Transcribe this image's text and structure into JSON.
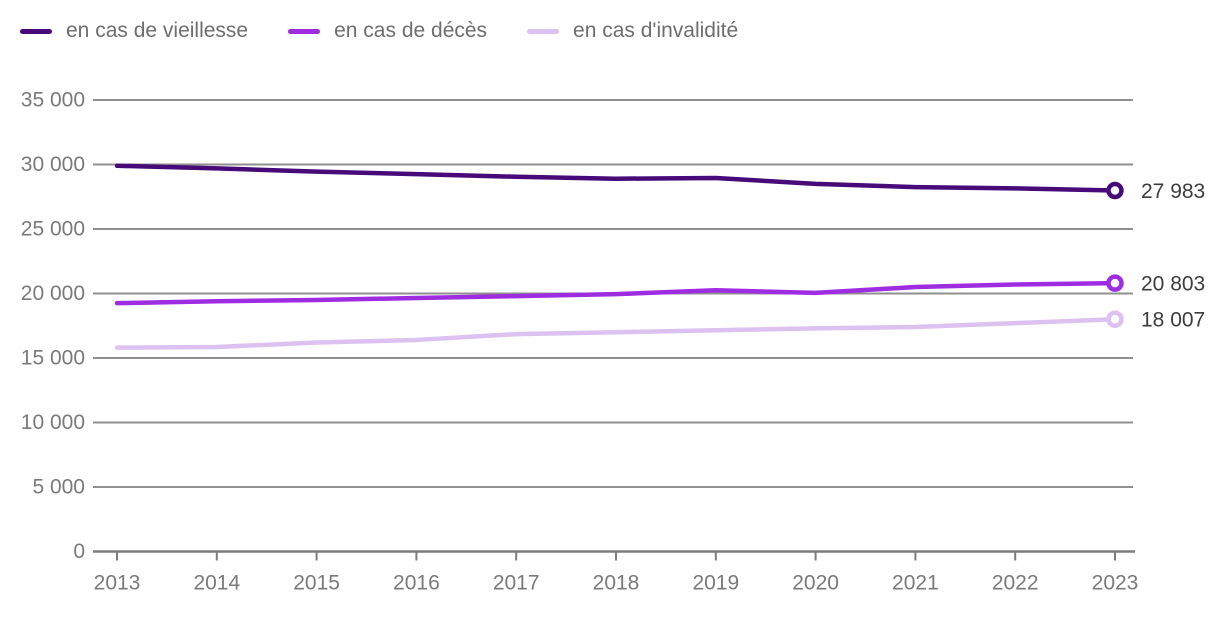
{
  "legend": {
    "items": [
      {
        "label": "en cas de vieillesse"
      },
      {
        "label": "en cas de décès"
      },
      {
        "label": "en cas d'invalidité"
      }
    ]
  },
  "chart_data": {
    "type": "line",
    "title": "",
    "xlabel": "",
    "ylabel": "",
    "x": [
      2013,
      2014,
      2015,
      2016,
      2017,
      2018,
      2019,
      2020,
      2021,
      2022,
      2023
    ],
    "x_tick_labels": [
      "2013",
      "2014",
      "2015",
      "2016",
      "2017",
      "2018",
      "2019",
      "2020",
      "2021",
      "2022",
      "2023"
    ],
    "series": [
      {
        "name": "en cas de vieillesse",
        "color": "#470a78",
        "values": [
          29900,
          29700,
          29450,
          29250,
          29050,
          28900,
          28950,
          28500,
          28250,
          28150,
          27983
        ],
        "end_label": "27 983"
      },
      {
        "name": "en cas de décès",
        "color": "#9e2ce0",
        "values": [
          19250,
          19400,
          19500,
          19650,
          19800,
          19950,
          20250,
          20050,
          20500,
          20700,
          20803
        ],
        "end_label": "20 803"
      },
      {
        "name": "en cas d'invalidité",
        "color": "#ddc1f0",
        "values": [
          15800,
          15850,
          16200,
          16400,
          16850,
          17000,
          17150,
          17300,
          17400,
          17700,
          18007
        ],
        "end_label": "18 007"
      }
    ],
    "ylim": [
      0,
      35000
    ],
    "y_tick_step": 5000,
    "y_tick_labels": [
      "0",
      "5 000",
      "10 000",
      "15 000",
      "20 000",
      "25 000",
      "30 000",
      "35 000"
    ],
    "grid": "horizontal",
    "legend_position": "top-left",
    "styles": {
      "grid_color": "#8f8f8f",
      "axis_color": "#7c7c7c",
      "tick_label_color": "#7a7a7a",
      "end_label_color": "#3d3d3d",
      "marker_fill": "#ffffff"
    }
  }
}
